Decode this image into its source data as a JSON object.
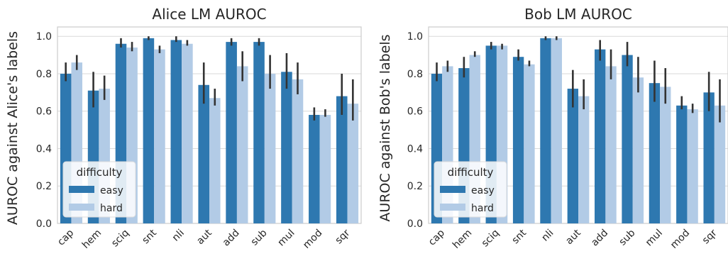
{
  "colors": {
    "easy": "#2e78b0",
    "hard": "#b2cbe6",
    "error_bar": "#333333",
    "grid": "#d9d9d9",
    "frame": "#cccccc",
    "text": "#262626"
  },
  "chart_data": [
    {
      "type": "bar",
      "title": "Alice LM AUROC",
      "ylabel": "AUROC against Alice's labels",
      "xlabel": "",
      "ylim": [
        0,
        1.05
      ],
      "yticks": [
        "0.0",
        "0.2",
        "0.4",
        "0.6",
        "0.8",
        "1.0"
      ],
      "grid": "horizontal",
      "legend": {
        "title": "difficulty",
        "placement": "lower-left",
        "entries": [
          "easy",
          "hard"
        ]
      },
      "categories": [
        "cap",
        "hem",
        "sciq",
        "snt",
        "nli",
        "aut",
        "add",
        "sub",
        "mul",
        "mod",
        "sqr"
      ],
      "series": [
        {
          "name": "easy",
          "values": [
            0.8,
            0.71,
            0.96,
            0.99,
            0.98,
            0.74,
            0.97,
            0.97,
            0.81,
            0.58,
            0.68
          ],
          "err_low": [
            0.76,
            0.62,
            0.94,
            0.98,
            0.97,
            0.64,
            0.95,
            0.95,
            0.72,
            0.55,
            0.58
          ],
          "err_high": [
            0.86,
            0.81,
            0.99,
            1.0,
            1.0,
            0.86,
            0.99,
            0.99,
            0.91,
            0.62,
            0.8
          ]
        },
        {
          "name": "hard",
          "values": [
            0.86,
            0.72,
            0.94,
            0.93,
            0.96,
            0.67,
            0.84,
            0.8,
            0.77,
            0.58,
            0.64
          ],
          "err_low": [
            0.82,
            0.66,
            0.92,
            0.91,
            0.95,
            0.63,
            0.76,
            0.72,
            0.69,
            0.57,
            0.55
          ],
          "err_high": [
            0.9,
            0.79,
            0.97,
            0.95,
            0.98,
            0.72,
            0.92,
            0.9,
            0.86,
            0.61,
            0.77
          ]
        }
      ]
    },
    {
      "type": "bar",
      "title": "Bob LM AUROC",
      "ylabel": "AUROC against Bob's labels",
      "xlabel": "",
      "ylim": [
        0,
        1.05
      ],
      "yticks": [
        "0.0",
        "0.2",
        "0.4",
        "0.6",
        "0.8",
        "1.0"
      ],
      "grid": "horizontal",
      "legend": {
        "title": "difficulty",
        "placement": "lower-left",
        "entries": [
          "easy",
          "hard"
        ]
      },
      "categories": [
        "cap",
        "hem",
        "sciq",
        "snt",
        "nli",
        "aut",
        "add",
        "sub",
        "mul",
        "mod",
        "sqr"
      ],
      "series": [
        {
          "name": "easy",
          "values": [
            0.8,
            0.83,
            0.95,
            0.89,
            0.99,
            0.72,
            0.93,
            0.9,
            0.75,
            0.63,
            0.7
          ],
          "err_low": [
            0.76,
            0.78,
            0.93,
            0.87,
            0.98,
            0.62,
            0.87,
            0.84,
            0.65,
            0.61,
            0.6
          ],
          "err_high": [
            0.86,
            0.89,
            0.97,
            0.93,
            1.0,
            0.82,
            0.98,
            0.97,
            0.87,
            0.68,
            0.81
          ]
        },
        {
          "name": "hard",
          "values": [
            0.84,
            0.9,
            0.95,
            0.85,
            0.99,
            0.68,
            0.84,
            0.78,
            0.73,
            0.61,
            0.63
          ],
          "err_low": [
            0.81,
            0.89,
            0.93,
            0.84,
            0.98,
            0.61,
            0.77,
            0.7,
            0.64,
            0.59,
            0.54
          ],
          "err_high": [
            0.87,
            0.92,
            0.96,
            0.87,
            1.0,
            0.77,
            0.93,
            0.89,
            0.83,
            0.64,
            0.77
          ]
        }
      ]
    }
  ]
}
